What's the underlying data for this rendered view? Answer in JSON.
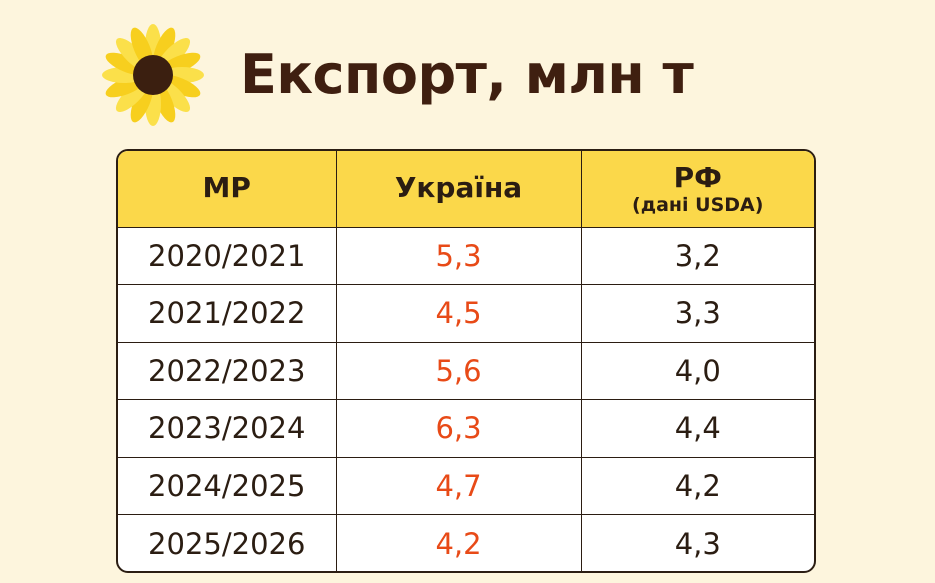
{
  "title": "Експорт, млн т",
  "icon": "sunflower-icon",
  "colors": {
    "background": "#fdf5dd",
    "header_fill": "#fbd84a",
    "ukraine_values": "#e84a17",
    "text": "#2b1d12",
    "title": "#3f1f10"
  },
  "table": {
    "headers": {
      "season": "МР",
      "ukraine": "Україна",
      "russia": "РФ",
      "russia_note": "(дані USDA)"
    }
  },
  "chart_data": {
    "type": "table",
    "title": "Експорт, млн т",
    "columns": [
      "МР",
      "Україна",
      "РФ (дані USDA)"
    ],
    "rows": [
      {
        "season": "2020/2021",
        "ukraine": "5,3",
        "russia": "3,2"
      },
      {
        "season": "2021/2022",
        "ukraine": "4,5",
        "russia": "3,3"
      },
      {
        "season": "2022/2023",
        "ukraine": "5,6",
        "russia": "4,0"
      },
      {
        "season": "2023/2024",
        "ukraine": "6,3",
        "russia": "4,4"
      },
      {
        "season": "2024/2025",
        "ukraine": "4,7",
        "russia": "4,2"
      },
      {
        "season": "2025/2026",
        "ukraine": "4,2",
        "russia": "4,3"
      }
    ]
  }
}
